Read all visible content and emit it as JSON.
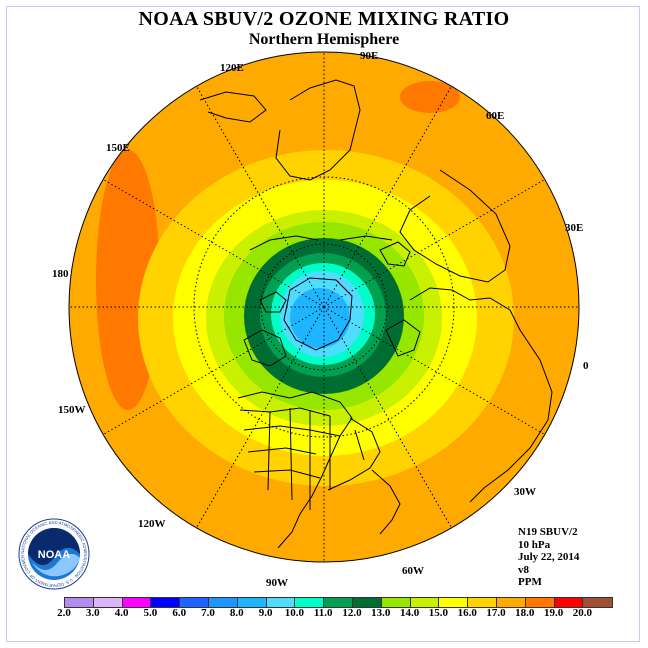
{
  "title": "NOAA SBUV/2 OZONE MIXING RATIO",
  "subtitle": "Northern Hemisphere",
  "longitude_labels": [
    "90E",
    "60E",
    "30E",
    "0",
    "30W",
    "60W",
    "90W",
    "120W",
    "150W",
    "180",
    "150E",
    "120E"
  ],
  "info": {
    "satellite": "N19 SBUV/2",
    "pressure": "10 hPa",
    "date": "July 22, 2014",
    "version": "v8",
    "units": "PPM"
  },
  "colorbar": {
    "labels": [
      "2.0",
      "3.0",
      "4.0",
      "5.0",
      "6.0",
      "7.0",
      "8.0",
      "9.0",
      "10.0",
      "11.0",
      "12.0",
      "13.0",
      "14.0",
      "15.0",
      "16.0",
      "17.0",
      "18.0",
      "19.0",
      "20.0"
    ],
    "colors": [
      "#b48cf0",
      "#dcb4f8",
      "#ff00ff",
      "#0000ff",
      "#1e64ff",
      "#1e96ff",
      "#1eb4ff",
      "#50dcff",
      "#00ffc8",
      "#00a050",
      "#006e32",
      "#96e600",
      "#c8f000",
      "#ffff00",
      "#ffd200",
      "#ffaa00",
      "#ff7800",
      "#ff0000",
      "#a05032"
    ]
  },
  "logo": {
    "text": "NOAA",
    "ring_text": "NATIONAL OCEANIC AND ATMOSPHERIC ADMINISTRATION · U.S. DEPARTMENT OF COMMERCE"
  }
}
